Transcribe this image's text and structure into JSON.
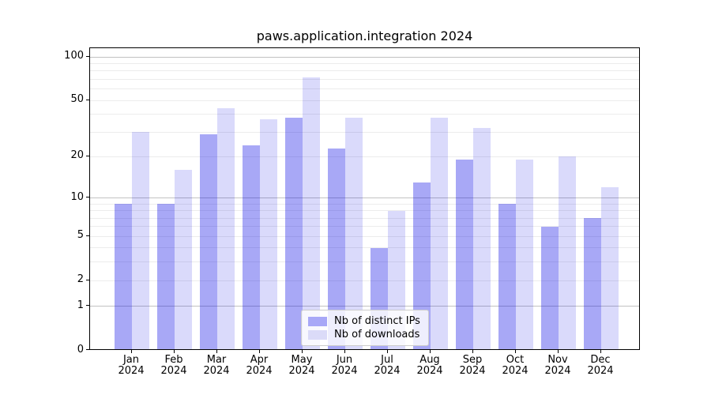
{
  "title": "paws.application.integration 2024",
  "legend": {
    "items": [
      {
        "label": "Nb of distinct IPs",
        "color": "#a8a8f7",
        "fill": "rgba(0,0,230,0.34)"
      },
      {
        "label": "Nb of downloads",
        "color": "#dbdbf8",
        "fill": "rgba(0,0,230,0.145)"
      }
    ]
  },
  "axes": {
    "y_tick_labels": [
      "100",
      "50",
      "20",
      "10",
      "5",
      "2",
      "1",
      "0"
    ],
    "x_year_label": "2024"
  },
  "chart_data": {
    "type": "bar",
    "title": "paws.application.integration 2024",
    "categories": [
      "Jan",
      "Feb",
      "Mar",
      "Apr",
      "May",
      "Jun",
      "Jul",
      "Aug",
      "Sep",
      "Oct",
      "Nov",
      "Dec"
    ],
    "category_year": "2024",
    "series": [
      {
        "name": "Nb of distinct IPs",
        "color": "#a8a8f7",
        "fill": "rgba(0,0,230,0.34)",
        "values": [
          9,
          9,
          29,
          24,
          38,
          23,
          4,
          13,
          19,
          9,
          6,
          7
        ]
      },
      {
        "name": "Nb of downloads",
        "color": "#dbdbf8",
        "fill": "rgba(0,0,230,0.145)",
        "values": [
          30,
          16,
          44,
          37,
          72,
          38,
          8,
          38,
          32,
          19,
          20,
          12
        ]
      }
    ],
    "yscale": "log1p",
    "ylim": [
      0,
      115
    ],
    "yticks": [
      0,
      1,
      2,
      5,
      10,
      20,
      50,
      100
    ],
    "gridlines_major": [
      1,
      10,
      100
    ],
    "gridlines_minor": [
      2,
      3,
      4,
      5,
      6,
      7,
      8,
      9,
      20,
      30,
      40,
      50,
      60,
      70,
      80,
      90
    ],
    "grid": true,
    "legend_position": "lower center"
  }
}
